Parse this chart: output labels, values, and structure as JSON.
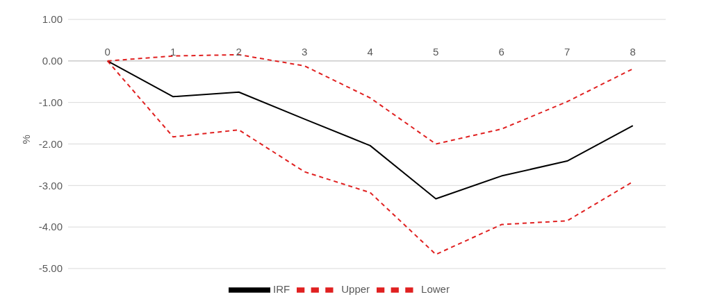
{
  "chart_data": {
    "type": "line",
    "ylabel": "%",
    "x": [
      0,
      1,
      2,
      3,
      4,
      5,
      6,
      7,
      8
    ],
    "xlim": [
      -0.6,
      8.5
    ],
    "xticks": [
      0,
      1,
      2,
      3,
      4,
      5,
      6,
      7,
      8
    ],
    "ylim": [
      -5,
      1
    ],
    "yticks": [
      {
        "value": -5,
        "label": "-5.00"
      },
      {
        "value": -4,
        "label": "-4.00"
      },
      {
        "value": -3,
        "label": "-3.00"
      },
      {
        "value": -2,
        "label": "-2.00"
      },
      {
        "value": -1,
        "label": "-1.00"
      },
      {
        "value": 0,
        "label": "0.00"
      },
      {
        "value": 1,
        "label": "1.00"
      }
    ],
    "grid": "y",
    "legend": "bottom",
    "marker": "none",
    "series": [
      {
        "name": "IRF",
        "color": "#000000",
        "line_style": "solid",
        "values": [
          0,
          -0.86,
          -0.75,
          -1.4,
          -2.04,
          -3.32,
          -2.77,
          -2.41,
          -1.56
        ]
      },
      {
        "name": "Upper",
        "color": "#e02020",
        "line_style": "dashed",
        "values": [
          0,
          0.12,
          0.15,
          -0.12,
          -0.89,
          -2.0,
          -1.64,
          -0.98,
          -0.19
        ]
      },
      {
        "name": "Lower",
        "color": "#e02020",
        "line_style": "dashed",
        "values": [
          0,
          -1.83,
          -1.66,
          -2.67,
          -3.17,
          -4.66,
          -3.94,
          -3.85,
          -2.91
        ]
      }
    ]
  }
}
